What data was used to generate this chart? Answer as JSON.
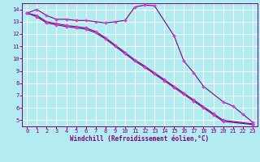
{
  "xlabel": "Windchill (Refroidissement éolien,°C)",
  "background_color": "#b3ecf0",
  "grid_color": "#ffffff",
  "line_color": "#800080",
  "marker_color": "#cc44cc",
  "xlim": [
    -0.5,
    23.5
  ],
  "ylim": [
    4.5,
    14.5
  ],
  "yticks": [
    5,
    6,
    7,
    8,
    9,
    10,
    11,
    12,
    13,
    14
  ],
  "xticks": [
    0,
    1,
    2,
    3,
    4,
    5,
    6,
    7,
    8,
    9,
    10,
    11,
    12,
    13,
    14,
    15,
    16,
    17,
    18,
    19,
    20,
    21,
    22,
    23
  ],
  "series1_x": [
    0,
    1,
    2,
    3,
    4,
    5,
    6,
    7,
    8,
    9,
    10,
    11,
    12,
    13,
    15,
    16,
    17,
    18,
    20,
    21,
    22,
    23
  ],
  "series1_y": [
    13.7,
    14.0,
    13.5,
    13.2,
    13.2,
    13.1,
    13.1,
    13.0,
    12.9,
    13.0,
    13.1,
    14.2,
    14.35,
    14.3,
    11.85,
    9.8,
    8.85,
    7.75,
    6.5,
    6.15,
    5.5,
    4.85
  ],
  "series2_x": [
    0,
    1,
    2,
    3,
    4,
    5,
    6,
    7,
    8,
    9,
    10,
    11,
    12,
    13,
    14,
    15,
    16,
    17,
    18,
    19,
    20,
    23
  ],
  "series2_y": [
    13.7,
    13.5,
    13.0,
    12.85,
    12.7,
    12.6,
    12.5,
    12.2,
    11.7,
    11.1,
    10.5,
    9.9,
    9.4,
    8.85,
    8.3,
    7.75,
    7.2,
    6.65,
    6.1,
    5.55,
    5.0,
    4.7
  ],
  "series3_x": [
    0,
    1,
    2,
    3,
    4,
    5,
    6,
    7,
    8,
    9,
    10,
    11,
    12,
    13,
    14,
    15,
    16,
    17,
    18,
    19,
    20,
    23
  ],
  "series3_y": [
    13.7,
    13.4,
    12.9,
    12.75,
    12.6,
    12.5,
    12.4,
    12.1,
    11.6,
    11.0,
    10.4,
    9.8,
    9.3,
    8.75,
    8.2,
    7.65,
    7.1,
    6.55,
    6.0,
    5.45,
    4.9,
    4.65
  ]
}
